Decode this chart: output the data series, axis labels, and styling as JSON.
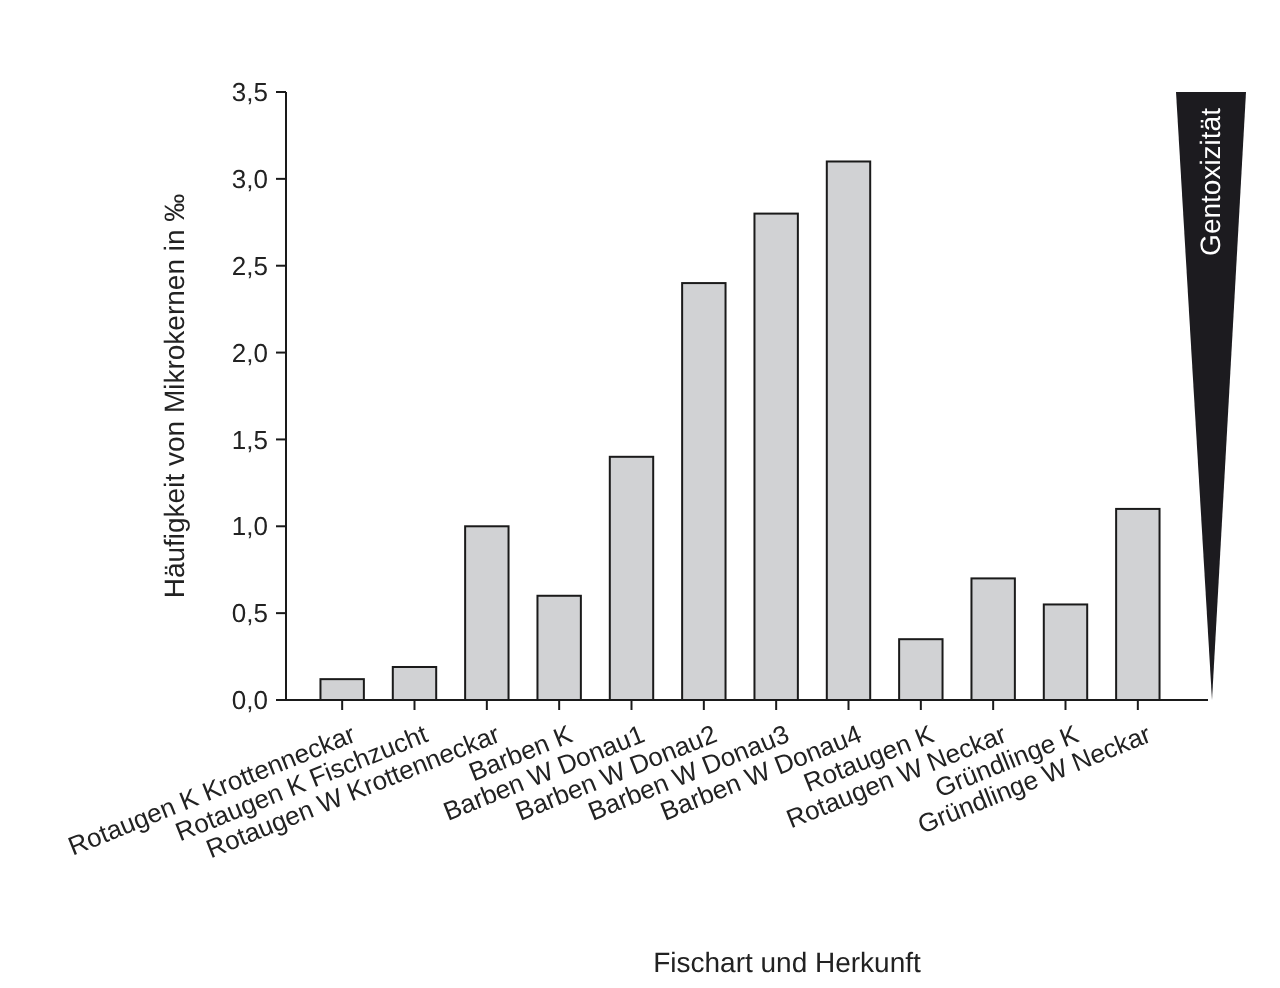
{
  "chart_data": {
    "type": "bar",
    "xlabel": "Fischart und Herkunft",
    "ylabel": "Häufigkeit von Mikrokernen in ‰",
    "categories": [
      "Rotaugen K Krottenneckar",
      "Rotaugen K Fischzucht",
      "Rotaugen W Krottenneckar",
      "Barben K",
      "Barben W Donau1",
      "Barben W Donau2",
      "Barben W Donau3",
      "Barben W Donau4",
      "Rotaugen K",
      "Rotaugen W Neckar",
      "Gründlinge K",
      "Gründlinge W Neckar"
    ],
    "values": [
      0.12,
      0.19,
      1.0,
      0.6,
      1.4,
      2.4,
      2.8,
      3.1,
      0.35,
      0.7,
      0.55,
      1.1
    ],
    "color": "#d1d2d4",
    "ylim": [
      0,
      3.5
    ],
    "yticks": [
      {
        "value": 0,
        "label": "0,0"
      },
      {
        "value": 0.5,
        "label": "0,5"
      },
      {
        "value": 1,
        "label": "1,0"
      },
      {
        "value": 1.5,
        "label": "1,5"
      },
      {
        "value": 2,
        "label": "2,0"
      },
      {
        "value": 2.5,
        "label": "2,5"
      },
      {
        "value": 3,
        "label": "3,0"
      },
      {
        "value": 3.5,
        "label": "3,5"
      }
    ],
    "grid": false,
    "annotations": [
      "Gentoxizität"
    ]
  }
}
